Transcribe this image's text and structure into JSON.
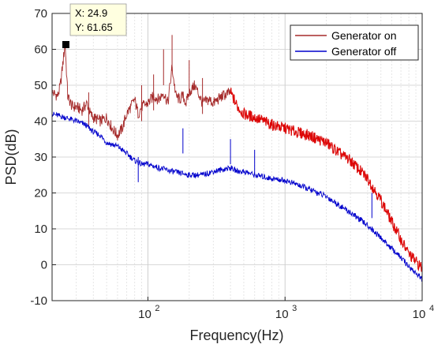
{
  "chart_data": {
    "type": "line",
    "xlabel": "Frequency(Hz)",
    "ylabel": "PSD(dB)",
    "xscale": "log",
    "xlim": [
      20,
      10000
    ],
    "ylim": [
      -10,
      70
    ],
    "yticks": [
      -10,
      0,
      10,
      20,
      30,
      40,
      50,
      60,
      70
    ],
    "xticks": [
      {
        "value": 100,
        "base": "10",
        "exp": "2"
      },
      {
        "value": 1000,
        "base": "10",
        "exp": "3"
      },
      {
        "value": 10000,
        "base": "10",
        "exp": "4"
      }
    ],
    "grid": true,
    "legend_position": "top-right",
    "series": [
      {
        "name": "Generator on",
        "color": "#a52a2a",
        "secondary_color": "#e60000",
        "x": [
          20,
          22,
          23,
          24.9,
          26,
          28,
          30,
          33,
          36,
          38,
          40,
          45,
          50,
          55,
          60,
          65,
          70,
          75,
          80,
          85,
          90,
          100,
          110,
          120,
          130,
          140,
          150,
          160,
          170,
          180,
          190,
          200,
          220,
          250,
          280,
          300,
          350,
          400,
          450,
          500,
          600,
          700,
          800,
          1000,
          1200,
          1500,
          2000,
          2500,
          3000,
          4000,
          5000,
          6000,
          7000,
          8000,
          10000
        ],
        "y": [
          48,
          47,
          50,
          61.65,
          47,
          44,
          44,
          43,
          45,
          42,
          41,
          40,
          41,
          38,
          36,
          38,
          42,
          44,
          46,
          42,
          44,
          45,
          47,
          46,
          48,
          45,
          55,
          47,
          46,
          47,
          45,
          48,
          50,
          45,
          46,
          45,
          47,
          48,
          44,
          42,
          41,
          40,
          39,
          38,
          37,
          36,
          34,
          31,
          29,
          24,
          18,
          12,
          7,
          3,
          -1
        ],
        "spikes": [
          {
            "x": 150,
            "y": 64
          },
          {
            "x": 130,
            "y": 60
          },
          {
            "x": 200,
            "y": 57
          },
          {
            "x": 90,
            "y": 50
          },
          {
            "x": 110,
            "y": 53
          },
          {
            "x": 37,
            "y": 48
          },
          {
            "x": 250,
            "y": 52
          }
        ]
      },
      {
        "name": "Generator off",
        "color": "#0000cc",
        "x": [
          20,
          25,
          30,
          35,
          40,
          45,
          50,
          60,
          70,
          80,
          90,
          100,
          120,
          150,
          200,
          250,
          300,
          350,
          400,
          450,
          500,
          600,
          800,
          1000,
          1200,
          1500,
          2000,
          2500,
          3000,
          4000,
          5000,
          6000,
          7000,
          8000,
          10000
        ],
        "y": [
          42,
          41,
          40,
          39,
          37,
          36,
          34,
          33,
          31,
          29,
          28,
          28,
          27,
          26,
          25,
          25,
          26,
          26.5,
          27,
          26,
          26,
          25,
          24,
          23.5,
          22.5,
          21,
          19,
          16.5,
          14.5,
          11,
          7.5,
          4.5,
          2,
          -0.5,
          -4
        ],
        "spikes": [
          {
            "x": 180,
            "y": 38
          },
          {
            "x": 400,
            "y": 35
          },
          {
            "x": 600,
            "y": 32
          },
          {
            "x": 85,
            "y": 30
          },
          {
            "x": 4300,
            "y": 20
          }
        ]
      }
    ],
    "datatip": {
      "x_label": "X: 24.9",
      "y_label": "Y: 61.65",
      "x": 24.9,
      "y": 61.65
    }
  }
}
